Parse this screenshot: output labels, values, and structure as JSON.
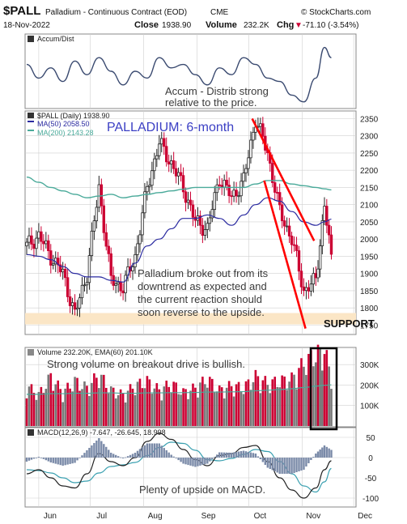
{
  "header": {
    "symbol": "$PALL",
    "name": "Palladium - Continuous Contract (EOD)",
    "exchange": "CME",
    "brand": "© StockCharts.com",
    "date": "18-Nov-2022",
    "close_label": "Close",
    "close_value": "1938.90",
    "volume_label": "Volume",
    "volume_value": "232.2K",
    "chg_label": "Chg",
    "chg_value": "-71.10 (-3.54%)",
    "chg_arrow": "▼"
  },
  "colors": {
    "price_up": "#222222",
    "price_down": "#cc0033",
    "ma50": "#2a2aa0",
    "ma200": "#4aaa9a",
    "trend": "#ff0000",
    "support": "#fbe6c6",
    "panel_bg": "#ffffff",
    "grid": "#d0d0d0",
    "macd": "#222222",
    "signal": "#3aa0b0",
    "hist": "#7a8aa8"
  },
  "months": [
    "Jun",
    "Jul",
    "Aug",
    "Sep",
    "Oct",
    "Nov",
    "Dec"
  ],
  "chart_data": [
    {
      "type": "line",
      "panel": "accum-dist",
      "legend": "Accum/Dist",
      "annotation": [
        "Accum - Distrib strong",
        "relative to the price."
      ],
      "x": [
        "2022-05-25",
        "2022-06-01",
        "2022-06-08",
        "2022-06-15",
        "2022-06-22",
        "2022-06-29",
        "2022-07-06",
        "2022-07-13",
        "2022-07-20",
        "2022-07-27",
        "2022-08-03",
        "2022-08-10",
        "2022-08-17",
        "2022-08-24",
        "2022-08-31",
        "2022-09-07",
        "2022-09-14",
        "2022-09-21",
        "2022-09-28",
        "2022-10-05",
        "2022-10-12",
        "2022-10-19",
        "2022-10-26",
        "2022-11-02",
        "2022-11-09",
        "2022-11-14",
        "2022-11-18"
      ],
      "series": [
        {
          "values": [
            60,
            40,
            55,
            35,
            65,
            45,
            70,
            50,
            30,
            50,
            40,
            70,
            55,
            60,
            45,
            30,
            55,
            45,
            70,
            60,
            40,
            35,
            15,
            5,
            40,
            85,
            70
          ]
        }
      ]
    },
    {
      "type": "candlestick",
      "panel": "price",
      "legend": {
        "price": "$PALL (Daily) 1938.90",
        "ma50": "MA(50) 2058.50",
        "ma200": "MA(200) 2143.28"
      },
      "title": "PALLADIUM: 6-month",
      "ylim": [
        1725,
        2370
      ],
      "yticks": [
        1750,
        1800,
        1850,
        1900,
        1950,
        2000,
        2050,
        2100,
        2150,
        2200,
        2250,
        2300,
        2350
      ],
      "support_band": [
        1752,
        1785
      ],
      "support_label": "SUPPORT",
      "annotation": [
        "Palladium broke out from its",
        "downtrend as expected and",
        "the current reaction should",
        "soon reverse to the upside."
      ],
      "x": [
        "2022-05-25",
        "2022-06-01",
        "2022-06-08",
        "2022-06-15",
        "2022-06-22",
        "2022-06-29",
        "2022-07-06",
        "2022-07-13",
        "2022-07-20",
        "2022-07-27",
        "2022-08-03",
        "2022-08-10",
        "2022-08-17",
        "2022-08-24",
        "2022-08-31",
        "2022-09-07",
        "2022-09-14",
        "2022-09-21",
        "2022-09-28",
        "2022-10-05",
        "2022-10-12",
        "2022-10-19",
        "2022-10-26",
        "2022-11-02",
        "2022-11-09",
        "2022-11-14",
        "2022-11-18"
      ],
      "series": [
        {
          "name": "$PALL (Daily)",
          "values": [
            1980,
            2010,
            1950,
            1900,
            1780,
            1900,
            2150,
            1880,
            1860,
            1950,
            2150,
            2280,
            2220,
            2150,
            2050,
            2030,
            2180,
            2120,
            2170,
            2350,
            2250,
            2080,
            2000,
            1850,
            1880,
            2100,
            1939
          ]
        },
        {
          "name": "MA(50)",
          "values": [
            1955,
            1950,
            1940,
            1920,
            1900,
            1890,
            1890,
            1880,
            1875,
            1930,
            1980,
            2000,
            2030,
            2060,
            2060,
            2070,
            2060,
            2040,
            2070,
            2100,
            2120,
            2110,
            2080,
            2050,
            2040,
            2050,
            2058
          ]
        },
        {
          "name": "MA(200)",
          "values": [
            2180,
            2165,
            2150,
            2140,
            2130,
            2120,
            2125,
            2130,
            2120,
            2125,
            2130,
            2135,
            2140,
            2145,
            2150,
            2150,
            2150,
            2150,
            2150,
            2160,
            2170,
            2170,
            2160,
            2155,
            2150,
            2146,
            2143
          ]
        }
      ],
      "trendlines": [
        {
          "from": [
            "2022-10-03",
            2350
          ],
          "to": [
            "2022-11-08",
            1995
          ]
        },
        {
          "from": [
            "2022-10-10",
            2170
          ],
          "to": [
            "2022-11-03",
            1740
          ]
        }
      ]
    },
    {
      "type": "bar",
      "panel": "volume",
      "legend": "Volume 232.20K, EMA(60) 201.10K",
      "annotation": "Strong volume on breakout drive is bullish.",
      "ylim": [
        0,
        380000
      ],
      "yticks": [
        "100K",
        "200K",
        "300K"
      ],
      "ytick_values": [
        100000,
        200000,
        300000
      ],
      "x": [
        "2022-05-25",
        "2022-06-01",
        "2022-06-08",
        "2022-06-15",
        "2022-06-22",
        "2022-06-29",
        "2022-07-06",
        "2022-07-13",
        "2022-07-20",
        "2022-07-27",
        "2022-08-03",
        "2022-08-10",
        "2022-08-17",
        "2022-08-24",
        "2022-08-31",
        "2022-09-07",
        "2022-09-14",
        "2022-09-21",
        "2022-09-28",
        "2022-10-05",
        "2022-10-12",
        "2022-10-19",
        "2022-10-26",
        "2022-11-02",
        "2022-11-09",
        "2022-11-14",
        "2022-11-18"
      ],
      "series": [
        {
          "name": "Volume",
          "values": [
            180000,
            140000,
            220000,
            150000,
            200000,
            170000,
            230000,
            160000,
            140000,
            180000,
            200000,
            160000,
            190000,
            150000,
            170000,
            210000,
            160000,
            180000,
            170000,
            220000,
            190000,
            200000,
            210000,
            280000,
            320000,
            330000,
            232000
          ]
        },
        {
          "name": "EMA(60)",
          "values": [
            155000,
            155000,
            158000,
            158000,
            160000,
            160000,
            162000,
            162000,
            160000,
            160000,
            162000,
            162000,
            163000,
            163000,
            164000,
            166000,
            166000,
            167000,
            168000,
            172000,
            175000,
            178000,
            182000,
            188000,
            195000,
            199000,
            201100
          ]
        }
      ]
    },
    {
      "type": "line",
      "panel": "macd",
      "legend": "MACD(12,26,9) -7.647, -26.645, 18.998",
      "annotation": "Plenty of upside on MACD.",
      "ylim": [
        -120,
        70
      ],
      "yticks": [
        -100,
        -50,
        0,
        50
      ],
      "x": [
        "2022-05-25",
        "2022-06-01",
        "2022-06-08",
        "2022-06-15",
        "2022-06-22",
        "2022-06-29",
        "2022-07-06",
        "2022-07-13",
        "2022-07-20",
        "2022-07-27",
        "2022-08-03",
        "2022-08-10",
        "2022-08-17",
        "2022-08-24",
        "2022-08-31",
        "2022-09-07",
        "2022-09-14",
        "2022-09-21",
        "2022-09-28",
        "2022-10-05",
        "2022-10-12",
        "2022-10-19",
        "2022-10-26",
        "2022-11-02",
        "2022-11-09",
        "2022-11-14",
        "2022-11-18"
      ],
      "series": [
        {
          "name": "MACD",
          "values": [
            -40,
            -30,
            -50,
            -70,
            -75,
            -40,
            10,
            -10,
            -20,
            0,
            40,
            60,
            45,
            20,
            -5,
            -20,
            5,
            10,
            25,
            30,
            -10,
            -50,
            -80,
            -100,
            -75,
            -30,
            -8
          ]
        },
        {
          "name": "Signal",
          "values": [
            -30,
            -32,
            -38,
            -50,
            -62,
            -58,
            -38,
            -22,
            -18,
            -12,
            5,
            25,
            38,
            35,
            18,
            -5,
            -8,
            -2,
            8,
            20,
            15,
            -10,
            -40,
            -70,
            -85,
            -60,
            -27
          ]
        },
        {
          "name": "Histogram",
          "values": [
            -10,
            2,
            -12,
            -20,
            -13,
            18,
            48,
            12,
            -2,
            12,
            35,
            35,
            7,
            -15,
            -23,
            -15,
            13,
            12,
            17,
            10,
            -25,
            -40,
            -40,
            -30,
            10,
            30,
            19
          ]
        }
      ]
    }
  ]
}
